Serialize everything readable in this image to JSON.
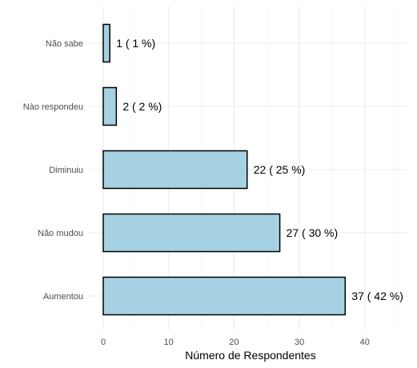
{
  "chart_data": {
    "type": "bar",
    "orientation": "horizontal",
    "categories": [
      "Não sabe",
      "Nào respondeu",
      "Diminuiu",
      "Não mudou",
      "Aumentou"
    ],
    "values": [
      1,
      2,
      22,
      27,
      37
    ],
    "data_labels": [
      "1 ( 1 %)",
      "2 ( 2 %)",
      "22 ( 25 %)",
      "27 ( 30 %)",
      "37 ( 42 %)"
    ],
    "xlabel": "Número de Respondentes",
    "ylabel": "",
    "xlim": [
      0,
      45
    ],
    "x_ticks": [
      0,
      10,
      20,
      30,
      40
    ],
    "x_tick_labels": [
      "0",
      "10",
      "20",
      "30",
      "40"
    ],
    "grid": true,
    "bar_fill": "#a6d1e2",
    "bar_stroke": "#000000"
  }
}
